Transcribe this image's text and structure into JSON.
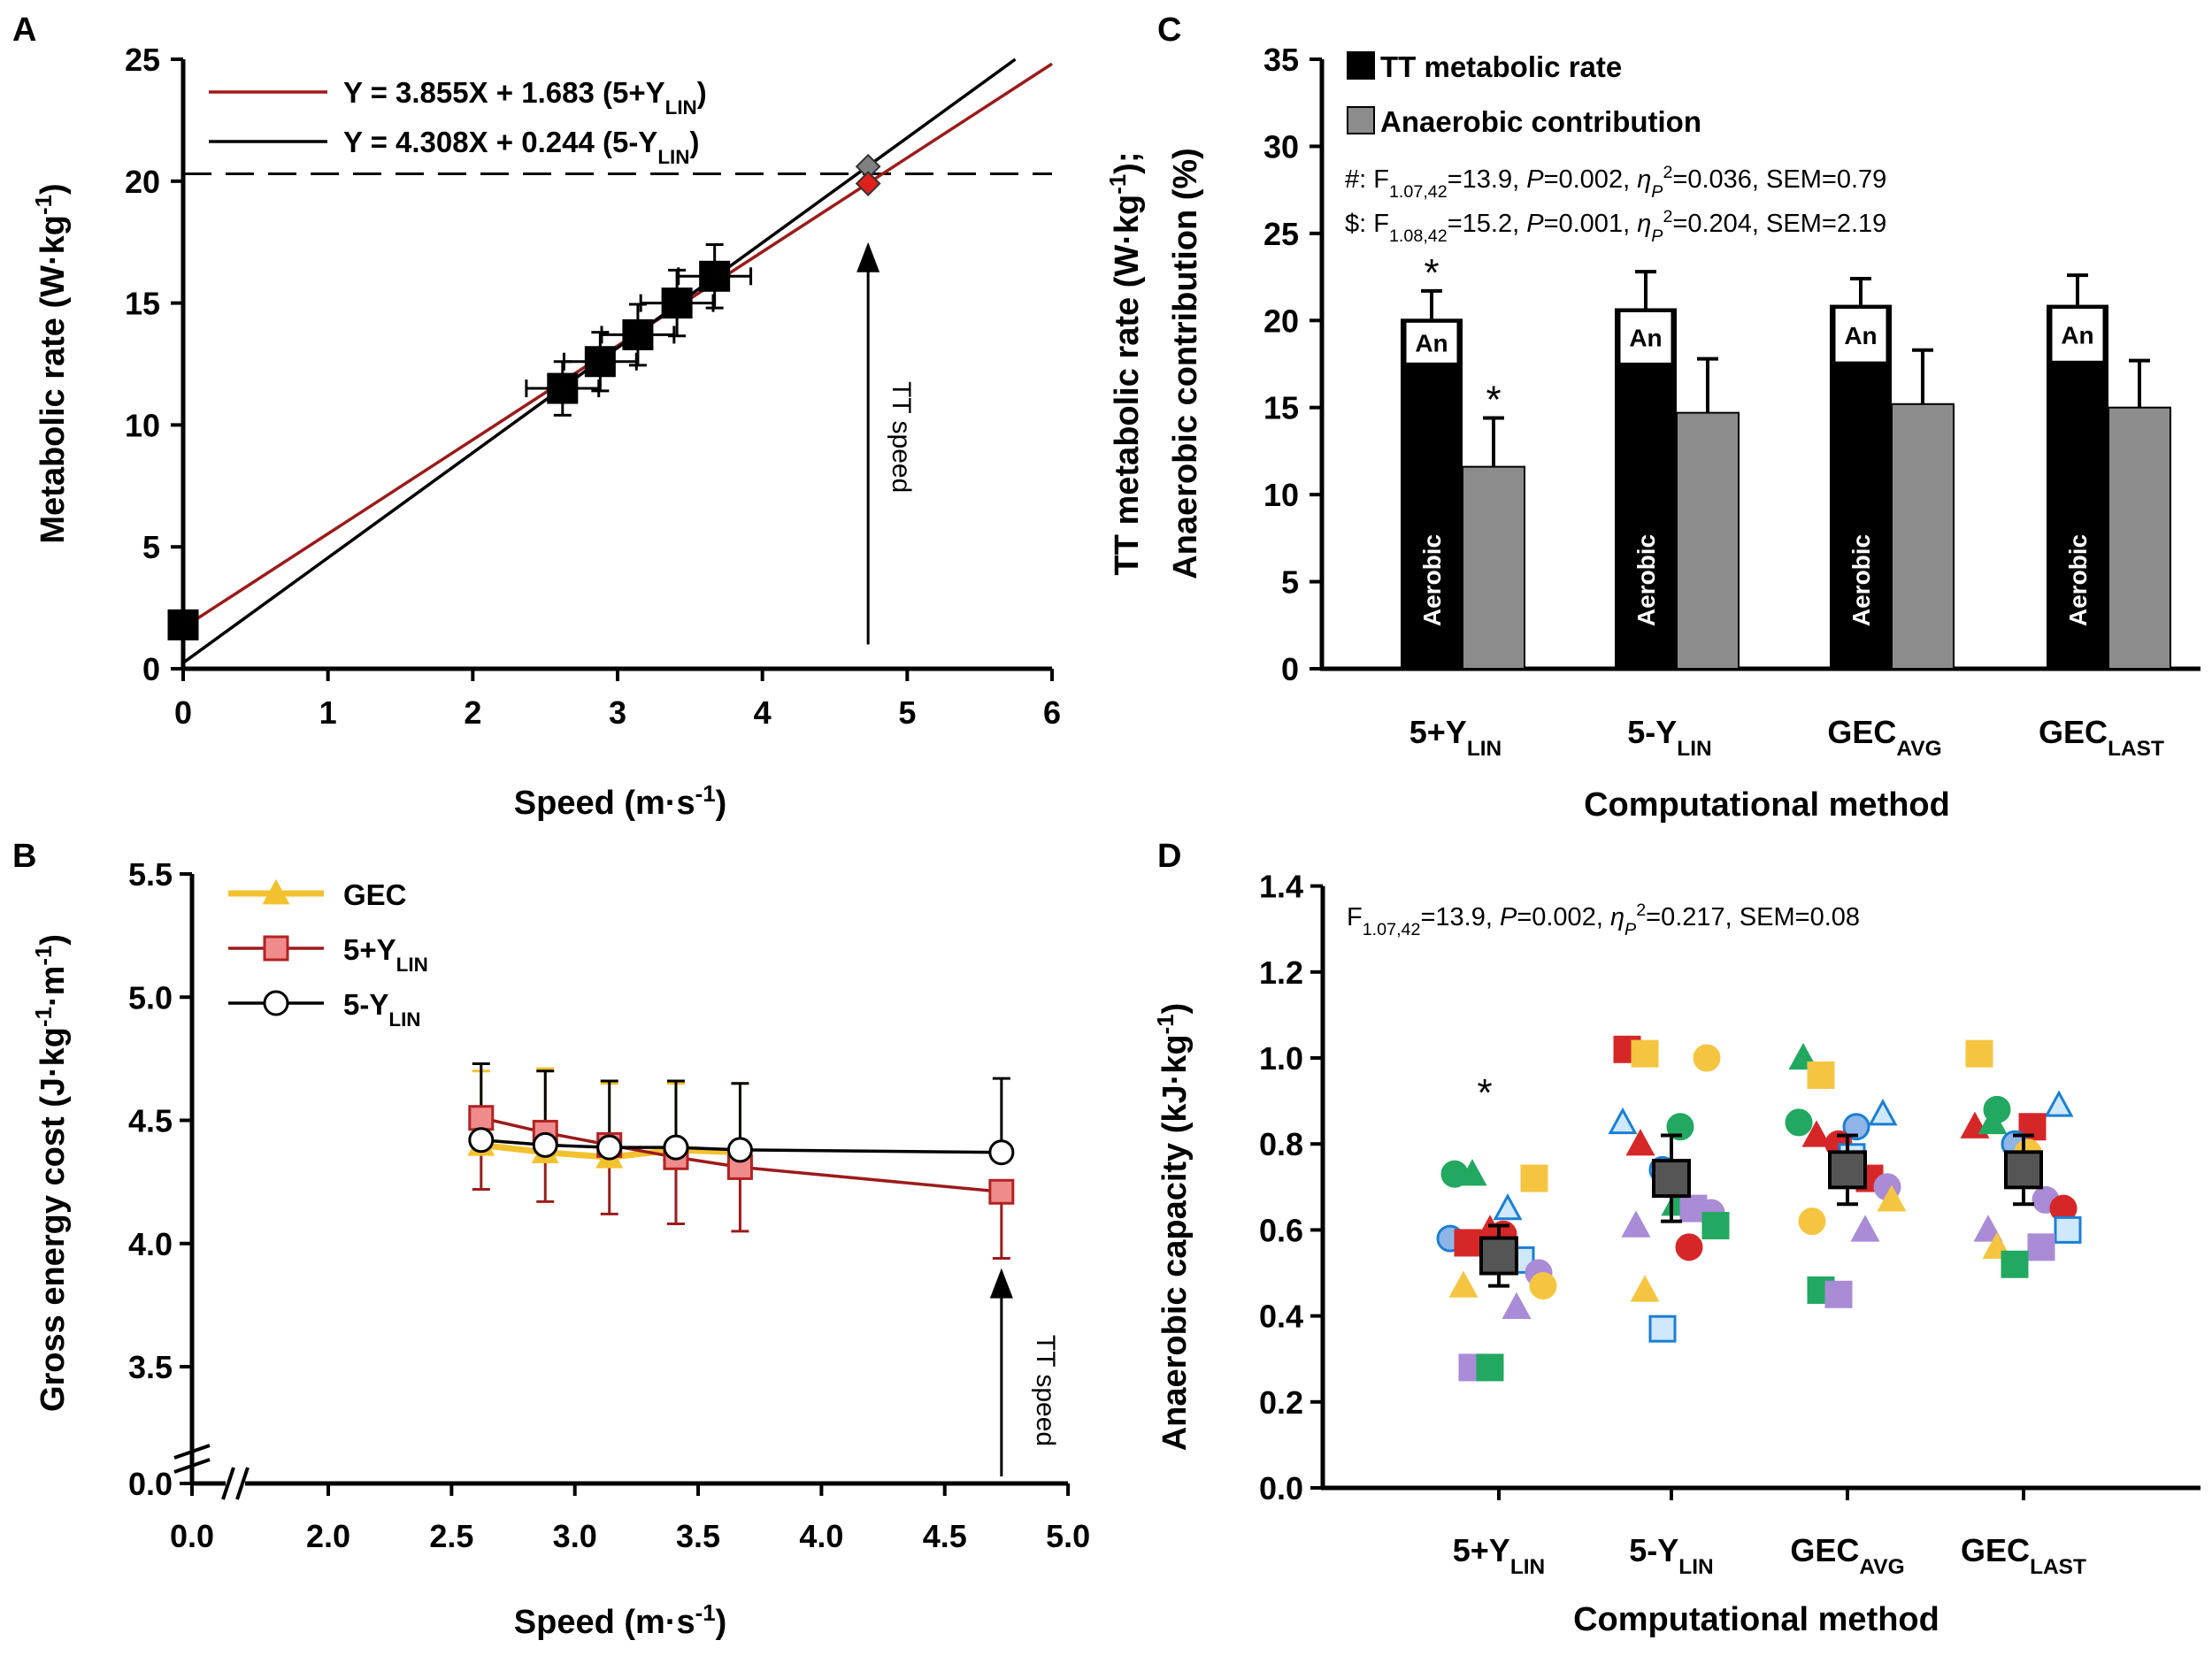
{
  "figure": {
    "panel_labels": [
      "A",
      "B",
      "C",
      "D"
    ]
  },
  "colors": {
    "red_line": "#9b1b1b",
    "red_marker_fill": "#f08b8b",
    "red_marker_stroke": "#b22222",
    "tt_red": "#e0201b",
    "tt_grey": "#808080",
    "gec_yellow": "#f2c12e",
    "bar_black": "#000000",
    "bar_grey": "#8c8c8c",
    "green": "#22a860",
    "yellow": "#f5c542",
    "blue": "#1a7fd4",
    "light_blue": "#8fb5e8",
    "red": "#d62728",
    "purple": "#a98bd6",
    "mean_marker": "#555555"
  },
  "chart_data": [
    {
      "panel": "A",
      "type": "scatter",
      "xlabel": [
        [
          "Speed (m·s",
          ""
        ],
        [
          "-1",
          "sup"
        ],
        [
          ")",
          ""
        ]
      ],
      "ylabel": [
        [
          "Metabolic rate (W·kg",
          ""
        ],
        [
          "-1",
          "sup"
        ],
        [
          ")",
          ""
        ]
      ],
      "xlim": [
        0,
        6
      ],
      "ylim": [
        0,
        25
      ],
      "xticks": [
        "0",
        "1",
        "2",
        "3",
        "4",
        "5",
        "6"
      ],
      "yticks": [
        "0",
        "5",
        "10",
        "15",
        "20",
        "25"
      ],
      "points": [
        {
          "x": 0,
          "y": 1.8,
          "xerr": 0,
          "yerr": 0
        },
        {
          "x": 2.62,
          "y": 11.5,
          "xerr": 0.25,
          "yerr": 1.1
        },
        {
          "x": 2.88,
          "y": 12.6,
          "xerr": 0.25,
          "yerr": 1.2
        },
        {
          "x": 3.14,
          "y": 13.7,
          "xerr": 0.25,
          "yerr": 1.25
        },
        {
          "x": 3.41,
          "y": 15.0,
          "xerr": 0.25,
          "yerr": 1.35
        },
        {
          "x": 3.67,
          "y": 16.1,
          "xerr": 0.25,
          "yerr": 1.3
        }
      ],
      "tt_points": [
        {
          "x": 4.73,
          "y": 20.6,
          "color": "#808080"
        },
        {
          "x": 4.73,
          "y": 19.9,
          "color": "#e0201b"
        }
      ],
      "lines": [
        {
          "slope": 3.855,
          "intercept": 1.683,
          "color": "#9b1b1b",
          "label": [
            [
              "Y = 3.855X + 1.683 (5+Y",
              ""
            ],
            [
              "LIN",
              "sub"
            ],
            [
              ")",
              ""
            ]
          ]
        },
        {
          "slope": 4.308,
          "intercept": 0.244,
          "color": "#000000",
          "label": [
            [
              "Y = 4.308X + 0.244 (5-Y",
              ""
            ],
            [
              "LIN",
              "sub"
            ],
            [
              ")",
              ""
            ]
          ]
        }
      ],
      "dashed_hline_y": 20.3,
      "annotation": {
        "text": "TT speed",
        "x": 4.73,
        "y_tip": 17.5,
        "y_tail": 1.0
      }
    },
    {
      "panel": "B",
      "type": "line",
      "xlabel": [
        [
          "Speed (m·s",
          ""
        ],
        [
          "-1",
          "sup"
        ],
        [
          ")",
          ""
        ]
      ],
      "ylabel": [
        [
          "Gross energy cost (J·kg",
          ""
        ],
        [
          "-1",
          "sup"
        ],
        [
          "·m",
          ""
        ],
        [
          "-1",
          "sup"
        ],
        [
          ")",
          ""
        ]
      ],
      "xticks": [
        "0.0",
        "2.0",
        "2.5",
        "3.0",
        "3.5",
        "4.0",
        "4.5",
        "5.0"
      ],
      "xtick_values": [
        0,
        2.0,
        2.5,
        3.0,
        3.5,
        4.0,
        4.5,
        5.0
      ],
      "yticks": [
        "0.0",
        "3.5",
        "4.0",
        "4.5",
        "5.0",
        "5.5"
      ],
      "ytick_values": [
        0,
        3.5,
        4.0,
        4.5,
        5.0,
        5.5
      ],
      "axis_breaks": true,
      "series": [
        {
          "name": [
            [
              "GEC",
              ""
            ]
          ],
          "marker": "triangle",
          "color": "#f2c12e",
          "x": [
            2.62,
            2.88,
            3.14,
            3.41,
            3.67
          ],
          "y": [
            4.4,
            4.37,
            4.35,
            4.38,
            4.37
          ],
          "err_up": [
            0.3,
            0.34,
            0.3,
            0.27,
            0.28
          ],
          "err_down": [
            0,
            0,
            0,
            0,
            0
          ]
        },
        {
          "name": [
            [
              "5+Y",
              ""
            ],
            [
              "LIN",
              "sub"
            ]
          ],
          "marker": "square",
          "color": "#b22222",
          "x": [
            2.62,
            2.88,
            3.14,
            3.41,
            3.67,
            4.73
          ],
          "y": [
            4.51,
            4.45,
            4.4,
            4.35,
            4.31,
            4.21
          ],
          "err_up": [
            0,
            0,
            0,
            0,
            0,
            0
          ],
          "err_down": [
            0.29,
            0.28,
            0.28,
            0.27,
            0.26,
            0.27
          ]
        },
        {
          "name": [
            [
              "5-Y",
              ""
            ],
            [
              "LIN",
              "sub"
            ]
          ],
          "marker": "circle",
          "color": "#000000",
          "x": [
            2.62,
            2.88,
            3.14,
            3.41,
            3.67,
            4.73
          ],
          "y": [
            4.42,
            4.4,
            4.39,
            4.39,
            4.38,
            4.37
          ],
          "err_up": [
            0.31,
            0.3,
            0.27,
            0.27,
            0.27,
            0.3
          ],
          "err_down": [
            0,
            0,
            0,
            0,
            0,
            0
          ]
        }
      ],
      "annotation": {
        "text": "TT speed",
        "x": 4.73,
        "y_tip": 3.9
      }
    },
    {
      "panel": "C",
      "type": "bar",
      "ylabel_lines": [
        [
          [
            "TT metabolic rate (W·kg",
            ""
          ],
          [
            "-1",
            "sup"
          ],
          [
            ");",
            ""
          ]
        ],
        [
          [
            "Anaerobic contribution (%)",
            ""
          ]
        ]
      ],
      "xlabel": [
        [
          "Computational method",
          ""
        ]
      ],
      "ylim": [
        0,
        35
      ],
      "yticks": [
        "0",
        "5",
        "10",
        "15",
        "20",
        "25",
        "30",
        "35"
      ],
      "categories": [
        [
          [
            "5+Y",
            ""
          ],
          [
            "LIN",
            "sub"
          ]
        ],
        [
          [
            "5-Y",
            ""
          ],
          [
            "LIN",
            "sub"
          ]
        ],
        [
          [
            "GEC",
            ""
          ],
          [
            "AVG",
            "sub"
          ]
        ],
        [
          [
            "GEC",
            ""
          ],
          [
            "LAST",
            "sub"
          ]
        ]
      ],
      "series": [
        {
          "name": "TT metabolic rate",
          "color": "#000000",
          "values": [
            20.1,
            20.7,
            20.9,
            20.9
          ],
          "err": [
            1.6,
            2.1,
            1.5,
            1.7
          ]
        },
        {
          "name": "Anaerobic contribution",
          "color": "#8c8c8c",
          "values": [
            11.6,
            14.7,
            15.2,
            15.0
          ],
          "err": [
            2.8,
            3.1,
            3.1,
            2.7
          ]
        }
      ],
      "bar_inner_labels": {
        "anaerobic": "An",
        "aerobic": "Aerobic"
      },
      "significance_marker": "*",
      "significant": [
        {
          "category": 0,
          "series": 0
        },
        {
          "category": 0,
          "series": 1
        }
      ],
      "stats": [
        [
          [
            "#: F",
            ""
          ],
          [
            "1.07,42",
            "sub"
          ],
          [
            "=13.9, ",
            ""
          ],
          [
            "P",
            "i"
          ],
          [
            "=0.002, ",
            ""
          ],
          [
            "η",
            "i"
          ],
          [
            "P",
            "isub"
          ],
          [
            "2",
            "sup"
          ],
          [
            "=0.036, SEM=0.79",
            ""
          ]
        ],
        [
          [
            "$: F",
            ""
          ],
          [
            "1.08,42",
            "sub"
          ],
          [
            "=15.2, ",
            ""
          ],
          [
            "P",
            "i"
          ],
          [
            "=0.001, ",
            ""
          ],
          [
            "η",
            "i"
          ],
          [
            "P",
            "isub"
          ],
          [
            "2",
            "sup"
          ],
          [
            "=0.204, SEM=2.19",
            ""
          ]
        ]
      ]
    },
    {
      "panel": "D",
      "type": "scatter",
      "ylabel": [
        [
          "Anaerobic capacity (kJ·kg",
          ""
        ],
        [
          "-1",
          "sup"
        ],
        [
          ")",
          ""
        ]
      ],
      "xlabel": [
        [
          "Computational method",
          ""
        ]
      ],
      "ylim": [
        0,
        1.4
      ],
      "yticks": [
        "0.0",
        "0.2",
        "0.4",
        "0.6",
        "0.8",
        "1.0",
        "1.2",
        "1.4"
      ],
      "categories": [
        [
          [
            "5+Y",
            ""
          ],
          [
            "LIN",
            "sub"
          ]
        ],
        [
          [
            "5-Y",
            ""
          ],
          [
            "LIN",
            "sub"
          ]
        ],
        [
          [
            "GEC",
            ""
          ],
          [
            "AVG",
            "sub"
          ]
        ],
        [
          [
            "GEC",
            ""
          ],
          [
            "LAST",
            "sub"
          ]
        ]
      ],
      "stats": [
        [
          "F",
          ""
        ],
        [
          "1.07,42",
          "sub"
        ],
        [
          "=13.9, ",
          ""
        ],
        [
          "P",
          "i"
        ],
        [
          "=0.002, ",
          ""
        ],
        [
          "η",
          "i"
        ],
        [
          "P",
          "isub"
        ],
        [
          "2",
          "sup"
        ],
        [
          "=0.217, SEM=0.08",
          ""
        ]
      ],
      "significance_marker": "*",
      "significance_y": 0.93,
      "means": [
        0.54,
        0.72,
        0.74,
        0.74
      ],
      "mean_err": [
        0.07,
        0.1,
        0.08,
        0.08
      ],
      "groups": [
        [
          {
            "y": 0.73,
            "shape": "circle",
            "color": "green"
          },
          {
            "y": 0.73,
            "shape": "triangle",
            "color": "green"
          },
          {
            "y": 0.72,
            "shape": "square",
            "color": "yellow"
          },
          {
            "y": 0.65,
            "shape": "triangle-open",
            "color": "blue"
          },
          {
            "y": 0.58,
            "shape": "circle",
            "color": "light_blue"
          },
          {
            "y": 0.57,
            "shape": "square",
            "color": "red"
          },
          {
            "y": 0.6,
            "shape": "triangle",
            "color": "red"
          },
          {
            "y": 0.59,
            "shape": "circle",
            "color": "red"
          },
          {
            "y": 0.53,
            "shape": "square-open",
            "color": "blue"
          },
          {
            "y": 0.5,
            "shape": "circle",
            "color": "purple"
          },
          {
            "y": 0.47,
            "shape": "circle",
            "color": "yellow"
          },
          {
            "y": 0.47,
            "shape": "triangle",
            "color": "yellow"
          },
          {
            "y": 0.42,
            "shape": "triangle",
            "color": "purple"
          },
          {
            "y": 0.28,
            "shape": "square",
            "color": "purple"
          },
          {
            "y": 0.28,
            "shape": "square",
            "color": "green"
          }
        ],
        [
          {
            "y": 1.02,
            "shape": "square",
            "color": "red"
          },
          {
            "y": 1.01,
            "shape": "square",
            "color": "yellow"
          },
          {
            "y": 1.0,
            "shape": "circle",
            "color": "yellow"
          },
          {
            "y": 0.84,
            "shape": "circle",
            "color": "green"
          },
          {
            "y": 0.85,
            "shape": "triangle-open",
            "color": "blue"
          },
          {
            "y": 0.8,
            "shape": "triangle",
            "color": "red"
          },
          {
            "y": 0.74,
            "shape": "circle",
            "color": "light_blue"
          },
          {
            "y": 0.66,
            "shape": "triangle",
            "color": "green"
          },
          {
            "y": 0.65,
            "shape": "square",
            "color": "purple"
          },
          {
            "y": 0.64,
            "shape": "circle",
            "color": "purple"
          },
          {
            "y": 0.61,
            "shape": "square",
            "color": "green"
          },
          {
            "y": 0.61,
            "shape": "triangle",
            "color": "purple"
          },
          {
            "y": 0.56,
            "shape": "circle",
            "color": "red"
          },
          {
            "y": 0.46,
            "shape": "triangle",
            "color": "yellow"
          },
          {
            "y": 0.37,
            "shape": "square-open",
            "color": "blue"
          }
        ],
        [
          {
            "y": 1.0,
            "shape": "triangle",
            "color": "green"
          },
          {
            "y": 0.96,
            "shape": "square",
            "color": "yellow"
          },
          {
            "y": 0.87,
            "shape": "triangle-open",
            "color": "blue"
          },
          {
            "y": 0.84,
            "shape": "circle",
            "color": "light_blue"
          },
          {
            "y": 0.85,
            "shape": "circle",
            "color": "green"
          },
          {
            "y": 0.82,
            "shape": "triangle",
            "color": "red"
          },
          {
            "y": 0.8,
            "shape": "circle",
            "color": "red"
          },
          {
            "y": 0.77,
            "shape": "square-open",
            "color": "blue"
          },
          {
            "y": 0.72,
            "shape": "square",
            "color": "red"
          },
          {
            "y": 0.7,
            "shape": "circle",
            "color": "purple"
          },
          {
            "y": 0.67,
            "shape": "triangle",
            "color": "yellow"
          },
          {
            "y": 0.62,
            "shape": "circle",
            "color": "yellow"
          },
          {
            "y": 0.6,
            "shape": "triangle",
            "color": "purple"
          },
          {
            "y": 0.46,
            "shape": "square",
            "color": "green"
          },
          {
            "y": 0.45,
            "shape": "square",
            "color": "purple"
          }
        ],
        [
          {
            "y": 1.01,
            "shape": "square",
            "color": "yellow"
          },
          {
            "y": 0.88,
            "shape": "circle",
            "color": "green"
          },
          {
            "y": 0.89,
            "shape": "triangle-open",
            "color": "blue"
          },
          {
            "y": 0.84,
            "shape": "square",
            "color": "red"
          },
          {
            "y": 0.84,
            "shape": "triangle",
            "color": "red"
          },
          {
            "y": 0.85,
            "shape": "triangle",
            "color": "green"
          },
          {
            "y": 0.8,
            "shape": "circle",
            "color": "light_blue"
          },
          {
            "y": 0.78,
            "shape": "circle",
            "color": "yellow"
          },
          {
            "y": 0.67,
            "shape": "circle",
            "color": "purple"
          },
          {
            "y": 0.65,
            "shape": "circle",
            "color": "red"
          },
          {
            "y": 0.6,
            "shape": "square-open",
            "color": "blue"
          },
          {
            "y": 0.6,
            "shape": "triangle",
            "color": "purple"
          },
          {
            "y": 0.56,
            "shape": "square",
            "color": "purple"
          },
          {
            "y": 0.56,
            "shape": "triangle",
            "color": "yellow"
          },
          {
            "y": 0.52,
            "shape": "square",
            "color": "green"
          }
        ]
      ]
    }
  ]
}
